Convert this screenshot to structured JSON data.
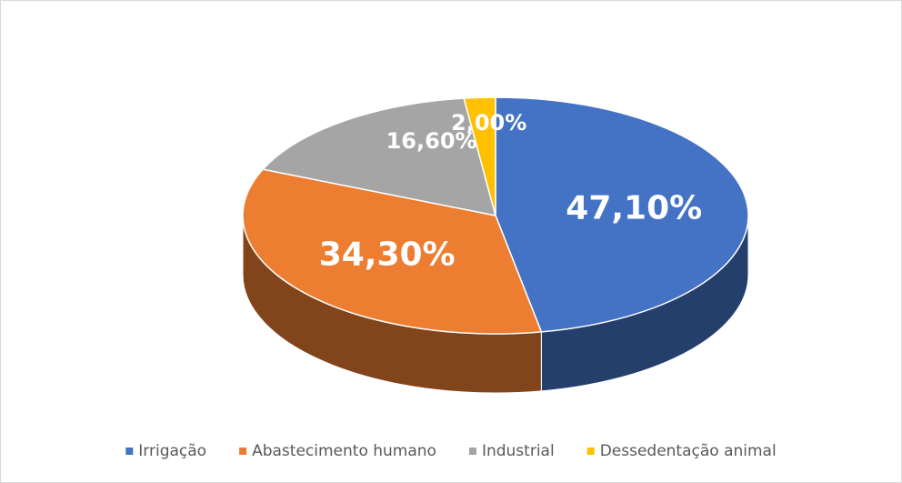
{
  "chart_data": {
    "type": "pie",
    "categories": [
      "Irrigação",
      "Abastecimento humano",
      "Industrial",
      "Dessedentação animal"
    ],
    "values": [
      47.1,
      34.3,
      16.6,
      2.0
    ],
    "value_labels": [
      "47,10%",
      "34,30%",
      "16,60%",
      "2,00%"
    ],
    "colors": [
      "#4472c4",
      "#ed7d31",
      "#a5a5a5",
      "#ffc000"
    ],
    "legend": "bottom"
  }
}
